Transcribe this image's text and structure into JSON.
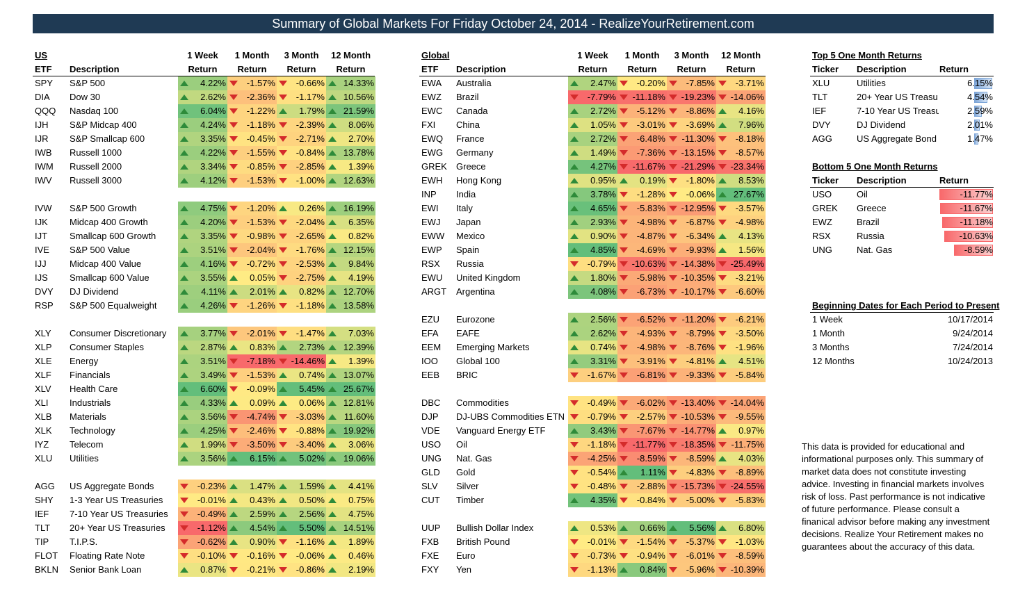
{
  "title": "Summary of Global Markets For Friday October 24, 2014 - RealizeYourRetirement.com",
  "headers": {
    "etf": "ETF",
    "description": "Description",
    "w1": "1 Week",
    "m1": "1 Month",
    "m3": "3 Month",
    "m12": "12 Month",
    "ret": "Return",
    "ticker": "Ticker"
  },
  "us": {
    "label": "US",
    "rows": [
      [
        "SPY",
        "S&P 500",
        "4.22%",
        "-1.57%",
        "-0.66%",
        "14.33%"
      ],
      [
        "DIA",
        "Dow 30",
        "2.62%",
        "-2.36%",
        "-1.17%",
        "10.56%"
      ],
      [
        "QQQ",
        "Nasdaq 100",
        "6.04%",
        "-1.22%",
        "1.79%",
        "21.59%"
      ],
      [
        "IJH",
        "S&P Midcap 400",
        "4.24%",
        "-1.18%",
        "-2.39%",
        "8.06%"
      ],
      [
        "IJR",
        "S&P Smallcap 600",
        "3.35%",
        "-0.45%",
        "-2.71%",
        "2.70%"
      ],
      [
        "IWB",
        "Russell 1000",
        "4.22%",
        "-1.55%",
        "-0.84%",
        "13.78%"
      ],
      [
        "IWM",
        "Russell 2000",
        "3.34%",
        "-0.85%",
        "-2.85%",
        "1.39%"
      ],
      [
        "IWV",
        "Russell 3000",
        "4.12%",
        "-1.53%",
        "-1.00%",
        "12.63%"
      ],
      null,
      [
        "IVW",
        "S&P 500 Growth",
        "4.75%",
        "-1.20%",
        "0.26%",
        "16.19%"
      ],
      [
        "IJK",
        "Midcap 400 Growth",
        "4.20%",
        "-1.53%",
        "-2.04%",
        "6.35%"
      ],
      [
        "IJT",
        "Smallcap 600 Growth",
        "3.35%",
        "-0.98%",
        "-2.65%",
        "0.82%"
      ],
      [
        "IVE",
        "S&P 500 Value",
        "3.51%",
        "-2.04%",
        "-1.76%",
        "12.15%"
      ],
      [
        "IJJ",
        "Midcap 400 Value",
        "4.16%",
        "-0.72%",
        "-2.53%",
        "9.84%"
      ],
      [
        "IJS",
        "Smallcap 600 Value",
        "3.55%",
        "0.05%",
        "-2.75%",
        "4.19%"
      ],
      [
        "DVY",
        "DJ Dividend",
        "4.11%",
        "2.01%",
        "0.82%",
        "12.70%"
      ],
      [
        "RSP",
        "S&P 500 Equalweight",
        "4.26%",
        "-1.26%",
        "-1.18%",
        "13.58%"
      ],
      null,
      [
        "XLY",
        "Consumer Discretionary",
        "3.77%",
        "-2.01%",
        "-1.47%",
        "7.03%"
      ],
      [
        "XLP",
        "Consumer Staples",
        "2.87%",
        "0.83%",
        "2.73%",
        "12.39%"
      ],
      [
        "XLE",
        "Energy",
        "3.51%",
        "-7.18%",
        "-14.46%",
        "1.39%"
      ],
      [
        "XLF",
        "Financials",
        "3.49%",
        "-1.53%",
        "0.74%",
        "13.07%"
      ],
      [
        "XLV",
        "Health Care",
        "6.60%",
        "-0.09%",
        "5.45%",
        "25.67%"
      ],
      [
        "XLI",
        "Industrials",
        "4.33%",
        "0.09%",
        "0.06%",
        "12.81%"
      ],
      [
        "XLB",
        "Materials",
        "3.56%",
        "-4.74%",
        "-3.03%",
        "11.60%"
      ],
      [
        "XLK",
        "Technology",
        "4.25%",
        "-2.46%",
        "-0.88%",
        "19.92%"
      ],
      [
        "IYZ",
        "Telecom",
        "1.99%",
        "-3.50%",
        "-3.40%",
        "3.06%"
      ],
      [
        "XLU",
        "Utilities",
        "3.56%",
        "6.15%",
        "5.02%",
        "19.06%"
      ],
      null,
      [
        "AGG",
        "US Aggregate Bonds",
        "-0.23%",
        "1.47%",
        "1.59%",
        "4.41%"
      ],
      [
        "SHY",
        "1-3 Year US Treasuries",
        "-0.01%",
        "0.43%",
        "0.50%",
        "0.75%"
      ],
      [
        "IEF",
        "7-10 Year US Treasuries",
        "-0.49%",
        "2.59%",
        "2.56%",
        "4.75%"
      ],
      [
        "TLT",
        "20+ Year US Treasuries",
        "-1.12%",
        "4.54%",
        "5.50%",
        "14.51%"
      ],
      [
        "TIP",
        "T.I.P.S.",
        "-0.62%",
        "0.90%",
        "-1.16%",
        "1.89%"
      ],
      [
        "FLOT",
        "Floating Rate Note",
        "-0.10%",
        "-0.16%",
        "-0.06%",
        "0.46%"
      ],
      [
        "BKLN",
        "Senior Bank Loan",
        "0.87%",
        "-0.21%",
        "-0.86%",
        "2.19%"
      ]
    ]
  },
  "global": {
    "label": "Global",
    "rows": [
      [
        "EWA",
        "Australia",
        "2.47%",
        "-0.20%",
        "-7.85%",
        "-3.71%"
      ],
      [
        "EWZ",
        "Brazil",
        "-7.79%",
        "-11.18%",
        "-19.23%",
        "-14.06%"
      ],
      [
        "EWC",
        "Canada",
        "2.72%",
        "-5.12%",
        "-8.86%",
        "4.16%"
      ],
      [
        "FXI",
        "China",
        "1.05%",
        "-3.01%",
        "-3.69%",
        "7.96%"
      ],
      [
        "EWQ",
        "France",
        "2.72%",
        "-6.48%",
        "-11.30%",
        "-8.18%"
      ],
      [
        "EWG",
        "Germany",
        "1.49%",
        "-7.36%",
        "-13.15%",
        "-8.57%"
      ],
      [
        "GREK",
        "Greece",
        "4.27%",
        "-11.67%",
        "-21.29%",
        "-23.34%"
      ],
      [
        "EWH",
        "Hong Kong",
        "0.95%",
        "0.19%",
        "-1.80%",
        "8.53%"
      ],
      [
        "INP",
        "India",
        "3.78%",
        "-1.28%",
        "-0.06%",
        "27.67%"
      ],
      [
        "EWI",
        "Italy",
        "4.65%",
        "-5.83%",
        "-12.95%",
        "-3.57%"
      ],
      [
        "EWJ",
        "Japan",
        "2.93%",
        "-4.98%",
        "-6.87%",
        "-4.98%"
      ],
      [
        "EWW",
        "Mexico",
        "0.90%",
        "-4.87%",
        "-6.34%",
        "4.13%"
      ],
      [
        "EWP",
        "Spain",
        "4.85%",
        "-4.69%",
        "-9.93%",
        "1.56%"
      ],
      [
        "RSX",
        "Russia",
        "-0.79%",
        "-10.63%",
        "-14.38%",
        "-25.49%"
      ],
      [
        "EWU",
        "United Kingdom",
        "1.80%",
        "-5.98%",
        "-10.35%",
        "-3.21%"
      ],
      [
        "ARGT",
        "Argentina",
        "4.08%",
        "-6.73%",
        "-10.17%",
        "-6.60%"
      ],
      null,
      [
        "EZU",
        "Eurozone",
        "2.56%",
        "-6.52%",
        "-11.20%",
        "-6.21%"
      ],
      [
        "EFA",
        "EAFE",
        "2.62%",
        "-4.93%",
        "-8.79%",
        "-3.50%"
      ],
      [
        "EEM",
        "Emerging Markets",
        "0.74%",
        "-4.98%",
        "-8.76%",
        "-1.96%"
      ],
      [
        "IOO",
        "Global 100",
        "3.31%",
        "-3.91%",
        "-4.81%",
        "4.51%"
      ],
      [
        "EEB",
        "BRIC",
        "-1.67%",
        "-6.81%",
        "-9.33%",
        "-5.84%"
      ],
      null,
      [
        "DBC",
        "Commodities",
        "-0.49%",
        "-6.02%",
        "-13.40%",
        "-14.04%"
      ],
      [
        "DJP",
        "DJ-UBS Commodities ETN",
        "-0.79%",
        "-2.57%",
        "-10.53%",
        "-9.55%"
      ],
      [
        "VDE",
        "Vanguard Energy ETF",
        "3.43%",
        "-7.67%",
        "-14.77%",
        "0.97%"
      ],
      [
        "USO",
        "Oil",
        "-1.18%",
        "-11.77%",
        "-18.35%",
        "-11.75%"
      ],
      [
        "UNG",
        "Nat. Gas",
        "-4.25%",
        "-8.59%",
        "-8.59%",
        "4.03%"
      ],
      [
        "GLD",
        "Gold",
        "-0.54%",
        "1.11%",
        "-4.83%",
        "-8.89%"
      ],
      [
        "SLV",
        "Silver",
        "-0.48%",
        "-2.88%",
        "-15.73%",
        "-24.55%"
      ],
      [
        "CUT",
        "Timber",
        "4.35%",
        "-0.84%",
        "-5.00%",
        "-5.83%"
      ],
      null,
      [
        "UUP",
        "Bullish Dollar Index",
        "0.53%",
        "0.66%",
        "5.56%",
        "6.80%"
      ],
      [
        "FXB",
        "British Pound",
        "-0.01%",
        "-1.54%",
        "-5.37%",
        "-1.03%"
      ],
      [
        "FXE",
        "Euro",
        "-0.73%",
        "-0.94%",
        "-6.01%",
        "-8.59%"
      ],
      [
        "FXY",
        "Yen",
        "-1.13%",
        "0.84%",
        "-5.96%",
        "-10.39%"
      ]
    ]
  },
  "top5": {
    "title": "Top 5 One Month Returns",
    "rows": [
      [
        "XLU",
        "Utilities",
        "6.15%"
      ],
      [
        "TLT",
        "20+ Year US Treasu",
        "4.54%"
      ],
      [
        "IEF",
        "7-10 Year US Treasu",
        "2.59%"
      ],
      [
        "DVY",
        "DJ Dividend",
        "2.01%"
      ],
      [
        "AGG",
        "US Aggregate Bond",
        "1.47%"
      ]
    ]
  },
  "bottom5": {
    "title": "Bottom 5 One Month Returns",
    "rows": [
      [
        "USO",
        "Oil",
        "-11.77%"
      ],
      [
        "GREK",
        "Greece",
        "-11.67%"
      ],
      [
        "EWZ",
        "Brazil",
        "-11.18%"
      ],
      [
        "RSX",
        "Russia",
        "-10.63%"
      ],
      [
        "UNG",
        "Nat. Gas",
        "-8.59%"
      ]
    ]
  },
  "dates": {
    "title": "Beginning Dates for Each Period to Present",
    "rows": [
      [
        "1 Week",
        "10/17/2014"
      ],
      [
        "1 Month",
        "9/24/2014"
      ],
      [
        "3 Months",
        "7/24/2014"
      ],
      [
        "12 Months",
        "10/24/2013"
      ]
    ]
  },
  "disclaimer": "This data is provided for educational and informational purposes only. This summary of market data does not constitute investing advice. Investing in financial markets involves risk of loss.  Past performance is not indicative of future performance. Please consult a finanical advisor before making any investment decisions. Realize Your Retirement makes no guarantees about the accuracy of this data.",
  "colors": {
    "pos": "#63be7b",
    "mid": "#ffeb84",
    "neg": "#f8696b",
    "bar_pos": "#7ea6d8",
    "bar_neg": "#f8696b"
  }
}
